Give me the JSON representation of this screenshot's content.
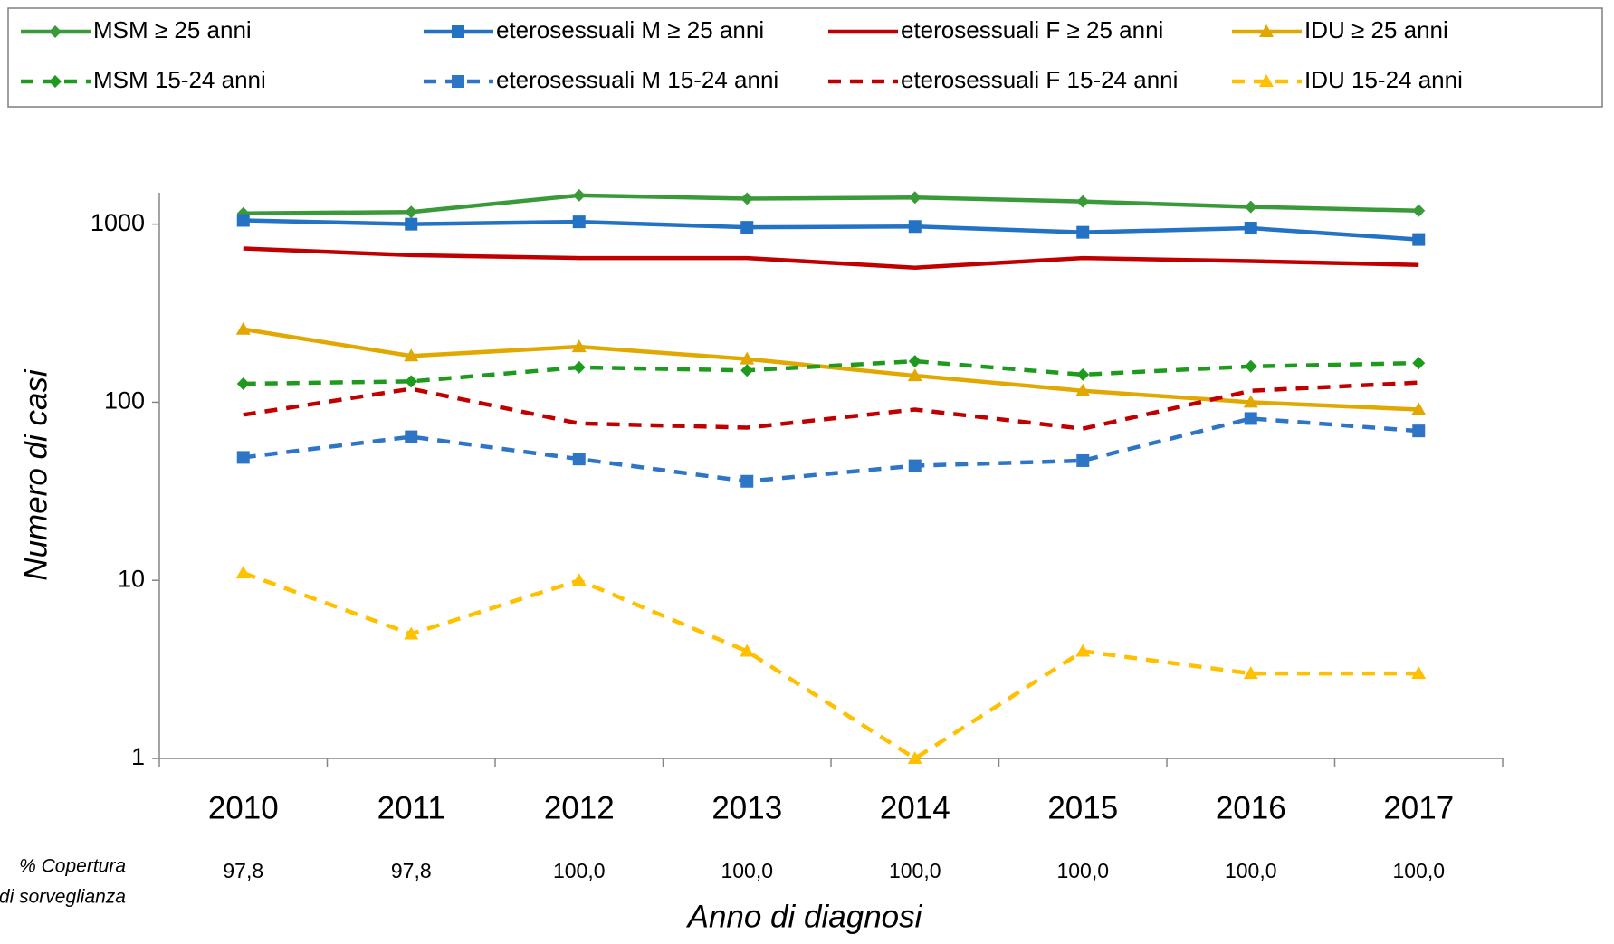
{
  "chart_data": {
    "type": "line",
    "y_label": "Numero di casi",
    "x_label": "Anno di diagnosi",
    "categories": [
      "2010",
      "2011",
      "2012",
      "2013",
      "2014",
      "2015",
      "2016",
      "2017"
    ],
    "log_scale": true,
    "ylim": [
      1,
      1500
    ],
    "yticks": [
      1,
      10,
      100,
      1000
    ],
    "grid": false,
    "legend": "top",
    "series": [
      {
        "name": "MSM ≥ 25 anni",
        "color": "#3a9a3a",
        "dash": false,
        "marker": "diamond",
        "values": [
          1150,
          1170,
          1450,
          1390,
          1410,
          1340,
          1250,
          1190
        ]
      },
      {
        "name": "eterosessuali M ≥ 25 anni",
        "color": "#2372c4",
        "dash": false,
        "marker": "square",
        "values": [
          1050,
          1000,
          1030,
          960,
          970,
          900,
          950,
          820
        ]
      },
      {
        "name": "eterosessuali F ≥ 25 anni",
        "color": "#c00000",
        "dash": false,
        "marker": "none",
        "values": [
          730,
          670,
          645,
          645,
          570,
          645,
          620,
          590
        ]
      },
      {
        "name": "IDU ≥ 25 anni",
        "color": "#e0a800",
        "dash": false,
        "marker": "triangle",
        "values": [
          257,
          182,
          205,
          175,
          141,
          116,
          100,
          91
        ]
      },
      {
        "name": "MSM 15-24 anni",
        "color": "#1e9a1e",
        "dash": true,
        "marker": "diamond",
        "values": [
          127,
          131,
          157,
          151,
          170,
          143,
          159,
          166
        ]
      },
      {
        "name": "eterosessuali M 15-24 anni",
        "color": "#2e75c6",
        "dash": true,
        "marker": "square",
        "values": [
          49,
          64,
          48,
          36,
          44,
          47,
          81,
          69
        ]
      },
      {
        "name": "eterosessuali F 15-24 anni",
        "color": "#c00000",
        "dash": true,
        "marker": "none",
        "values": [
          85,
          119,
          76,
          72,
          91,
          71,
          116,
          129
        ]
      },
      {
        "name": "IDU 15-24 anni",
        "color": "#ffc000",
        "dash": true,
        "marker": "triangle",
        "values": [
          11,
          5,
          10,
          4,
          1,
          4,
          3,
          3
        ]
      }
    ],
    "coverage": {
      "label": [
        "% Copertura",
        "del Sistema di sorveglianza"
      ],
      "values": [
        97.8,
        97.8,
        100,
        100,
        100,
        100,
        100,
        100
      ],
      "value_labels": [
        "97,8",
        "97,8",
        "100,0",
        "100,0",
        "100,0",
        "100,0",
        "100,0",
        "100,0"
      ]
    }
  }
}
